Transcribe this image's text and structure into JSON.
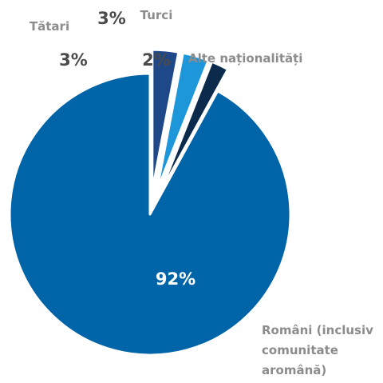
{
  "chart_data": {
    "type": "pie",
    "slices": [
      {
        "name": "Români (inclusiv comunitate aromână)",
        "label_lines": [
          "Români (inclusiv",
          "comunitate",
          "aromână)"
        ],
        "value": 92,
        "value_label": "92%",
        "color": "#0064a8"
      },
      {
        "name": "Tătari",
        "label_lines": [
          "Tătari"
        ],
        "value": 3,
        "value_label": "3%",
        "color": "#1f4888"
      },
      {
        "name": "Turci",
        "label_lines": [
          "Turci"
        ],
        "value": 3,
        "value_label": "3%",
        "color": "#1d97d9"
      },
      {
        "name": "Alte naționalități",
        "label_lines": [
          "Alte naționalități"
        ],
        "value": 2,
        "value_label": "2%",
        "color": "#0c2a4c"
      }
    ]
  }
}
